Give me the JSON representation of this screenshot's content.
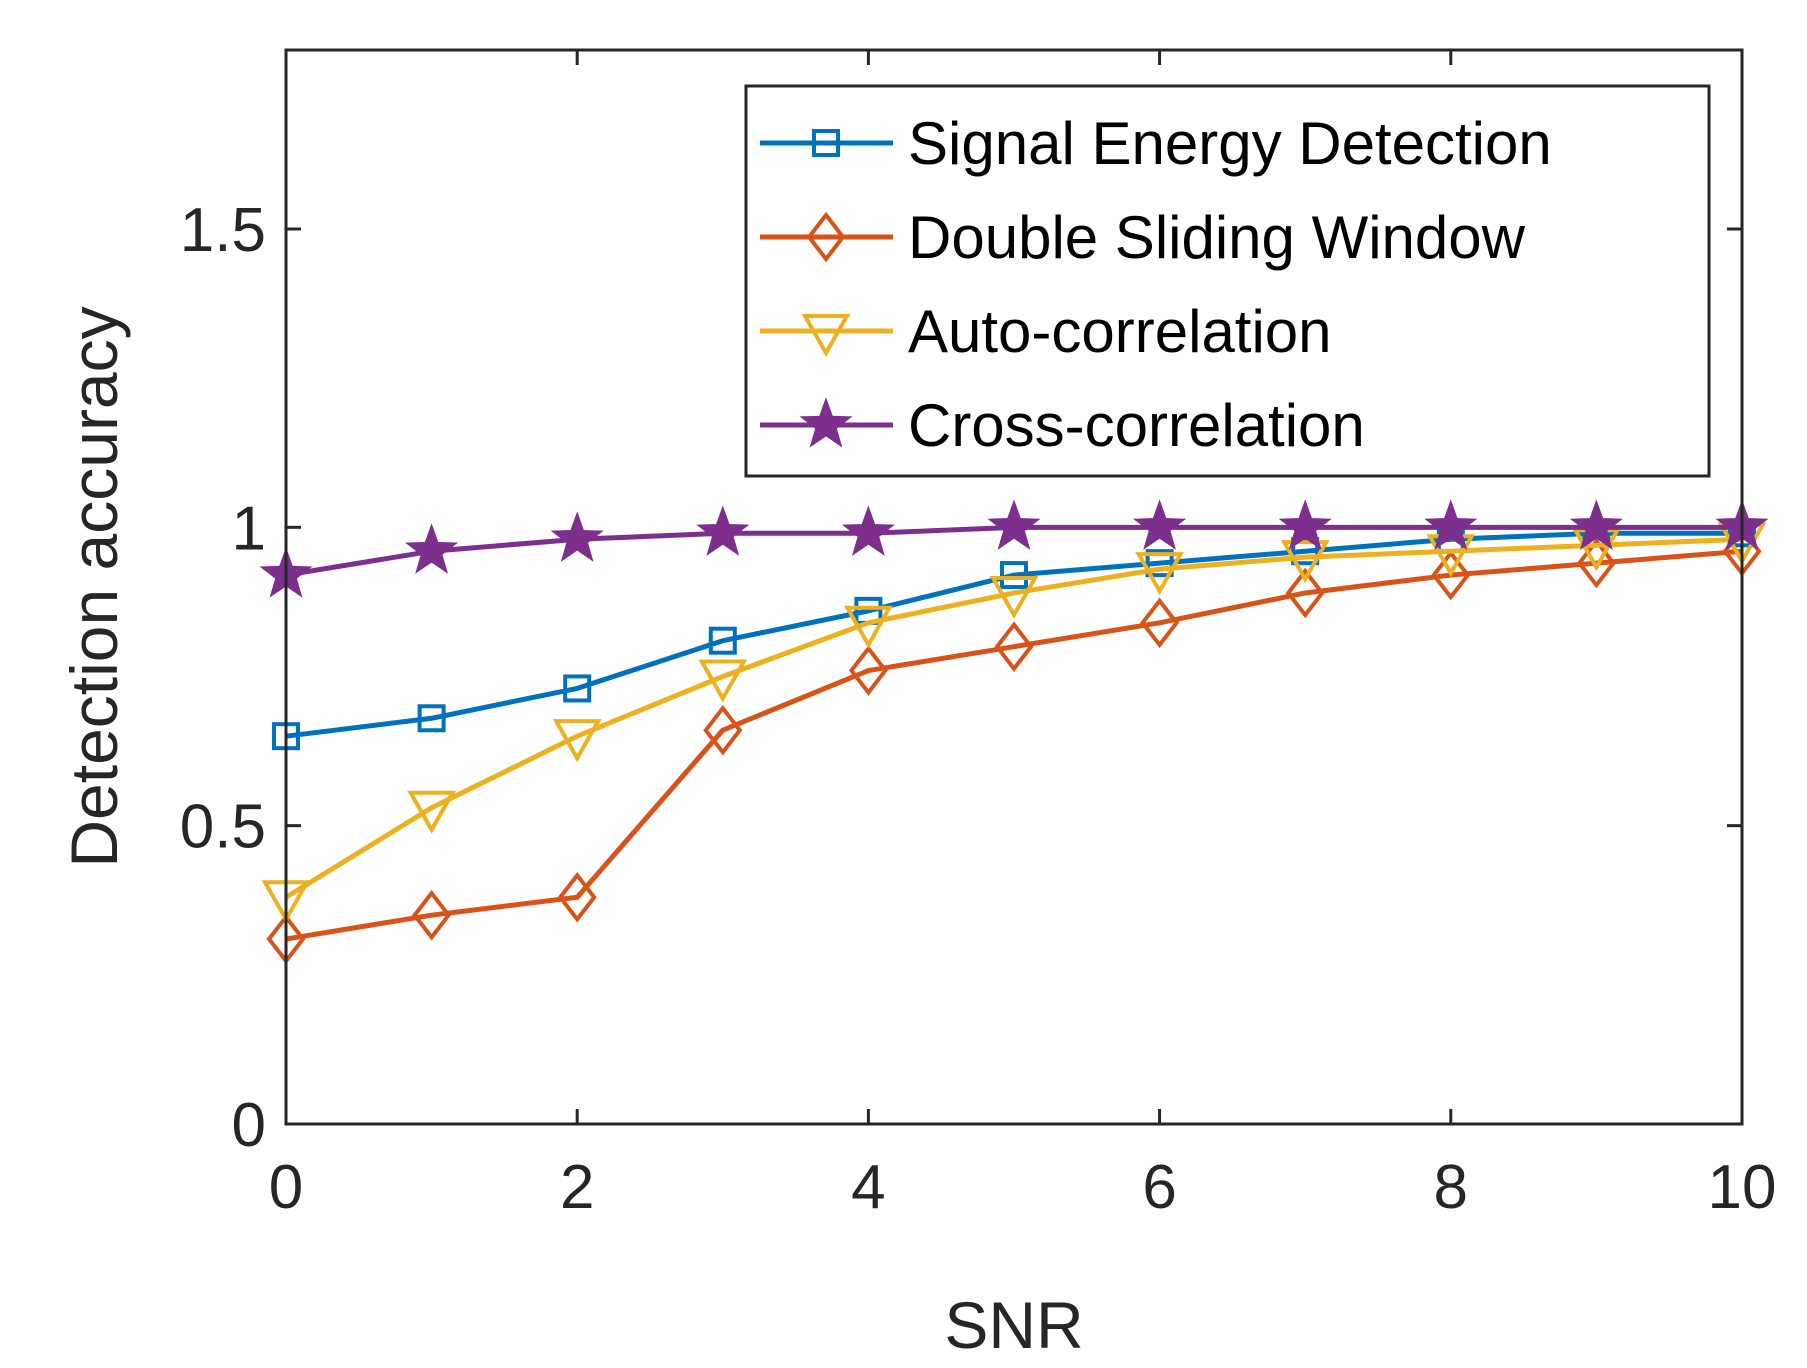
{
  "chart_data": {
    "type": "line",
    "title": "",
    "xlabel": "SNR",
    "ylabel": "Detection accuracy",
    "xlim": [
      0,
      10
    ],
    "ylim": [
      0,
      1.8
    ],
    "x": [
      0,
      1,
      2,
      3,
      4,
      5,
      6,
      7,
      8,
      9,
      10
    ],
    "xticks": [
      0,
      2,
      4,
      6,
      8,
      10
    ],
    "xtick_labels": [
      "0",
      "2",
      "4",
      "6",
      "8",
      "10"
    ],
    "yticks": [
      0,
      0.5,
      1,
      1.5
    ],
    "ytick_labels": [
      "0",
      "0.5",
      "1",
      "1.5"
    ],
    "grid": false,
    "legend_position": "top-right",
    "series": [
      {
        "name": "Signal Energy Detection",
        "color": "#0072BD",
        "marker": "square",
        "values": [
          0.65,
          0.68,
          0.73,
          0.81,
          0.86,
          0.92,
          0.94,
          0.96,
          0.98,
          0.99,
          0.99
        ]
      },
      {
        "name": "Double Sliding Window",
        "color": "#D95319",
        "marker": "diamond",
        "values": [
          0.31,
          0.35,
          0.38,
          0.66,
          0.76,
          0.8,
          0.84,
          0.89,
          0.92,
          0.94,
          0.96
        ]
      },
      {
        "name": "Auto-correlation",
        "color": "#EDB120",
        "marker": "triangle-down",
        "values": [
          0.38,
          0.53,
          0.65,
          0.75,
          0.84,
          0.89,
          0.93,
          0.95,
          0.96,
          0.97,
          0.98
        ]
      },
      {
        "name": "Cross-correlation",
        "color": "#7E2F8E",
        "marker": "star",
        "values": [
          0.92,
          0.96,
          0.98,
          0.99,
          0.99,
          1.0,
          1.0,
          1.0,
          1.0,
          1.0,
          1.0
        ]
      }
    ]
  }
}
